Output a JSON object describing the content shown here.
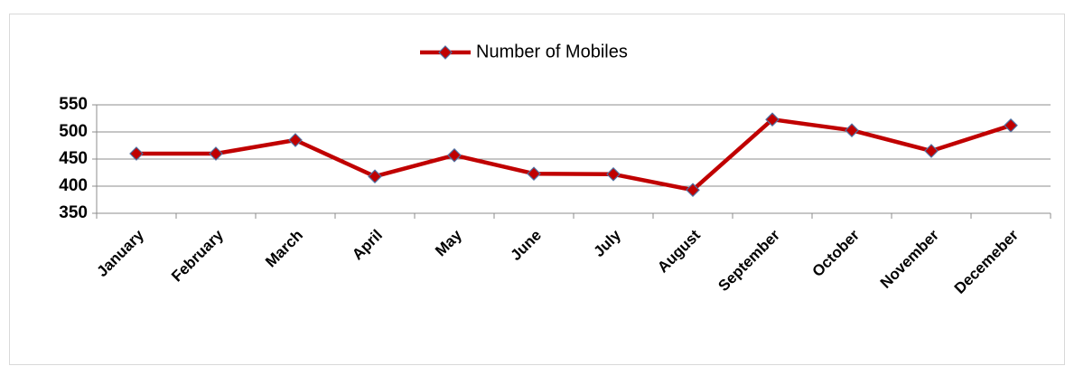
{
  "chart_data": {
    "type": "line",
    "categories": [
      "January",
      "February",
      "March",
      "April",
      "May",
      "June",
      "July",
      "August",
      "September",
      "October",
      "November",
      "Decemeber"
    ],
    "series": [
      {
        "name": "Number of Mobiles",
        "color": "#c00000",
        "values": [
          460,
          460,
          485,
          418,
          457,
          423,
          422,
          393,
          523,
          503,
          465,
          512
        ]
      }
    ],
    "ylim": [
      350,
      550
    ],
    "yticks": [
      350,
      400,
      450,
      500,
      550
    ],
    "grid": true,
    "legend": "top"
  }
}
